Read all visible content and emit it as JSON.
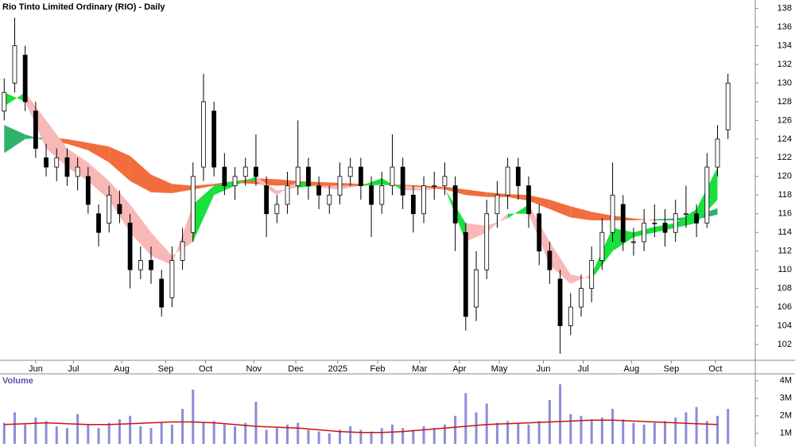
{
  "chart_data": [
    {
      "type": "candlestick",
      "title": "Rio Tinto Limited Ordinary (RIO) - Daily",
      "x": [
        2,
        7,
        12,
        17,
        22,
        27,
        32,
        37,
        42,
        47,
        52,
        57,
        62,
        67,
        72,
        77,
        82,
        87,
        92,
        97,
        102,
        107,
        112,
        117,
        122,
        127,
        132,
        137,
        142,
        147,
        152,
        157,
        162,
        167,
        172,
        177,
        182,
        187,
        192,
        197,
        202,
        207,
        212,
        217,
        222,
        227,
        232,
        237,
        242,
        247,
        252,
        257,
        262,
        267,
        272,
        277,
        282,
        287,
        292,
        297,
        302,
        307,
        312,
        317,
        322,
        327,
        332,
        337,
        342,
        347
      ],
      "open": [
        127,
        130,
        133,
        127,
        122,
        121,
        122,
        120,
        120,
        116,
        115,
        117,
        115,
        110,
        111,
        109,
        107,
        111,
        114,
        121,
        127,
        121,
        119,
        120,
        121,
        119,
        116,
        117,
        119,
        121,
        119,
        117,
        118,
        120,
        121,
        119,
        117,
        119,
        121,
        118,
        116,
        119,
        119,
        119,
        114,
        106,
        110,
        116,
        118,
        121,
        119,
        116,
        112,
        109,
        104,
        106,
        108,
        111,
        114,
        117,
        113,
        113,
        115,
        115,
        114,
        116,
        116,
        115,
        121,
        125
      ],
      "high": [
        130.5,
        137,
        134,
        128,
        123.5,
        123,
        123,
        122,
        121,
        117,
        119,
        118.5,
        116,
        112.5,
        112.5,
        110,
        112.5,
        114.5,
        121.5,
        131,
        128,
        122.5,
        121,
        122,
        124.5,
        120,
        118,
        120.5,
        126,
        122,
        120,
        119,
        121.5,
        122,
        122,
        120,
        120.5,
        124.5,
        122,
        119,
        120,
        120.5,
        121.5,
        120,
        115,
        112,
        117.5,
        119.5,
        122,
        122,
        120,
        117,
        113,
        110,
        107.5,
        109.5,
        112.5,
        115.5,
        121.5,
        118,
        114.5,
        116.5,
        117,
        116.5,
        117.5,
        119,
        117,
        122.5,
        125.5,
        131
      ],
      "low": [
        126,
        129,
        127,
        122,
        120,
        119.5,
        119,
        118.5,
        116,
        112.5,
        114,
        115,
        108,
        109,
        108.5,
        105,
        106,
        110,
        113,
        119.5,
        120,
        118,
        117.5,
        119,
        119,
        113.5,
        115,
        116,
        118,
        117.5,
        116.5,
        116,
        117,
        119,
        117.5,
        113.5,
        116,
        118,
        116.5,
        114,
        115,
        117.5,
        118,
        112,
        103.5,
        104.5,
        109,
        114.5,
        116.5,
        117.5,
        114.5,
        110.5,
        108.5,
        101,
        103,
        105,
        106.5,
        110,
        113,
        112,
        111.5,
        112,
        113.5,
        112.5,
        113,
        114.5,
        113.5,
        114.5,
        120,
        124
      ],
      "close": [
        129,
        134,
        128,
        123,
        121,
        122,
        120,
        121,
        117,
        114,
        118,
        116,
        110,
        111,
        110,
        106,
        111,
        113,
        120,
        128,
        121,
        119,
        120,
        121,
        120,
        116,
        117,
        119,
        121,
        119,
        118,
        118,
        120,
        121,
        119,
        117,
        119,
        121,
        118,
        116,
        119,
        119,
        120,
        115,
        105,
        110,
        116,
        118,
        121,
        119,
        116,
        112,
        110,
        104,
        106,
        108,
        111,
        114,
        118,
        113,
        113,
        115,
        115,
        114,
        116,
        116,
        115,
        121,
        124,
        130
      ],
      "ma_x": [
        2,
        12,
        22,
        32,
        42,
        52,
        62,
        72,
        82,
        92,
        102,
        112,
        122,
        132,
        142,
        152,
        162,
        172,
        182,
        192,
        202,
        212,
        222,
        232,
        242,
        252,
        262,
        272,
        282,
        292,
        302,
        312,
        322,
        332,
        342
      ],
      "fast_ribbon": {
        "up_color": "#19e03c",
        "down_color": "#f8b8b8",
        "a": [
          129,
          128,
          123,
          121,
          119.5,
          117.5,
          114,
          111.5,
          110.5,
          117,
          119,
          119.5,
          119.5,
          118,
          119.5,
          118.8,
          118.6,
          119,
          119.8,
          118.5,
          118.5,
          118.8,
          113,
          114,
          116,
          116,
          110.5,
          108.5,
          109.5,
          114.5,
          114,
          114.6,
          115,
          116.5,
          121
        ],
        "b": [
          127.5,
          129,
          126,
          123,
          121.5,
          119.5,
          117,
          114,
          111.5,
          113,
          118,
          119,
          120,
          118.5,
          118.8,
          119,
          119,
          119,
          119.1,
          119,
          118.7,
          118.7,
          115,
          114.7,
          115.5,
          117,
          113,
          109.5,
          109,
          112,
          113.5,
          114,
          114.5,
          115,
          117.5
        ]
      },
      "slow_ribbon": {
        "up_color": "#2fb36a",
        "down_color": "#f26d3d",
        "a": [
          125.5,
          124.5,
          123.8,
          123.5,
          122.8,
          121.5,
          119.5,
          118.3,
          118.2,
          118.6,
          119,
          119.3,
          119.2,
          119,
          119.1,
          119,
          119,
          119,
          119.1,
          119,
          118.8,
          118.6,
          118,
          117.8,
          117.8,
          117.4,
          116.5,
          115.6,
          115.3,
          115.3,
          115.3,
          115.4,
          115.5,
          115.8,
          116.6
        ],
        "b": [
          122.5,
          124,
          124.2,
          124,
          123.6,
          123.2,
          122.2,
          120.2,
          119.2,
          119,
          119.2,
          119.5,
          119.8,
          119.7,
          119.5,
          119.4,
          119.3,
          119.2,
          119.2,
          119.1,
          119,
          118.9,
          118.6,
          118.3,
          118.1,
          118,
          117.5,
          116.8,
          116.2,
          115.8,
          115.5,
          115.3,
          115.3,
          115.4,
          115.9
        ]
      },
      "xlim": [
        0,
        360
      ],
      "xticks": [
        {
          "value": 17,
          "label": "Jun"
        },
        {
          "value": 35,
          "label": "Jul"
        },
        {
          "value": 58,
          "label": "Aug"
        },
        {
          "value": 79,
          "label": "Sep"
        },
        {
          "value": 98,
          "label": "Oct"
        },
        {
          "value": 121,
          "label": "Nov"
        },
        {
          "value": 141,
          "label": "Dec"
        },
        {
          "value": 161,
          "label": "2025"
        },
        {
          "value": 180,
          "label": "Feb"
        },
        {
          "value": 200,
          "label": "Mar"
        },
        {
          "value": 219,
          "label": "Apr"
        },
        {
          "value": 238,
          "label": "May"
        },
        {
          "value": 259,
          "label": "Jun"
        },
        {
          "value": 278,
          "label": "Jul"
        },
        {
          "value": 301,
          "label": "Aug"
        },
        {
          "value": 320,
          "label": "Sep"
        },
        {
          "value": 341,
          "label": "Oct"
        }
      ],
      "ylim": [
        100.3,
        138.9
      ],
      "yticks": [
        102,
        104,
        106,
        108,
        110,
        112,
        114,
        116,
        118,
        120,
        122,
        124,
        126,
        128,
        130,
        132,
        134,
        136,
        138
      ]
    },
    {
      "type": "bar",
      "title": "Volume",
      "color": "#8c8cd8",
      "ma_color": "#cc1111",
      "x": [
        2,
        7,
        12,
        17,
        22,
        27,
        32,
        37,
        42,
        47,
        52,
        57,
        62,
        67,
        72,
        77,
        82,
        87,
        92,
        97,
        102,
        107,
        112,
        117,
        122,
        127,
        132,
        137,
        142,
        147,
        152,
        157,
        162,
        167,
        172,
        177,
        182,
        187,
        192,
        197,
        202,
        207,
        212,
        217,
        222,
        227,
        232,
        237,
        242,
        247,
        252,
        257,
        262,
        267,
        272,
        277,
        282,
        287,
        292,
        297,
        302,
        307,
        312,
        317,
        322,
        327,
        332,
        337,
        342,
        347
      ],
      "values": [
        1.6,
        2.2,
        1.5,
        1.9,
        1.7,
        1.4,
        1.3,
        2.1,
        1.5,
        1.3,
        1.6,
        1.8,
        2.0,
        1.4,
        1.3,
        1.6,
        1.5,
        2.4,
        3.5,
        1.6,
        1.7,
        1.5,
        1.4,
        1.6,
        2.8,
        1.2,
        1.3,
        1.5,
        1.6,
        1.2,
        1.1,
        1.0,
        1.2,
        1.4,
        1.2,
        1.1,
        1.3,
        1.5,
        1.3,
        1.2,
        1.4,
        1.3,
        1.5,
        2.0,
        3.3,
        2.2,
        2.7,
        1.6,
        1.7,
        1.6,
        1.5,
        1.7,
        2.9,
        3.8,
        2.1,
        2.0,
        1.8,
        1.9,
        2.4,
        1.8,
        1.6,
        1.5,
        1.6,
        1.7,
        1.9,
        2.2,
        2.5,
        1.7,
        2.0,
        2.4
      ],
      "ma_x": [
        2,
        12,
        22,
        32,
        42,
        52,
        62,
        72,
        82,
        92,
        102,
        112,
        122,
        132,
        142,
        152,
        162,
        172,
        182,
        192,
        202,
        212,
        222,
        232,
        242,
        252,
        262,
        272,
        282,
        292,
        302,
        312,
        322,
        332,
        342
      ],
      "ma": [
        1.5,
        1.55,
        1.6,
        1.55,
        1.5,
        1.5,
        1.55,
        1.6,
        1.65,
        1.65,
        1.6,
        1.5,
        1.4,
        1.35,
        1.3,
        1.2,
        1.1,
        1.05,
        1.05,
        1.1,
        1.2,
        1.3,
        1.4,
        1.5,
        1.55,
        1.6,
        1.65,
        1.7,
        1.75,
        1.75,
        1.7,
        1.65,
        1.6,
        1.55,
        1.5
      ],
      "xlim": [
        0,
        360
      ],
      "ylim": [
        0.4,
        4.4
      ],
      "yticks": [
        {
          "value": 1,
          "label": "1M"
        },
        {
          "value": 2,
          "label": "2M"
        },
        {
          "value": 3,
          "label": "3M"
        },
        {
          "value": 4,
          "label": "4M"
        }
      ]
    }
  ]
}
